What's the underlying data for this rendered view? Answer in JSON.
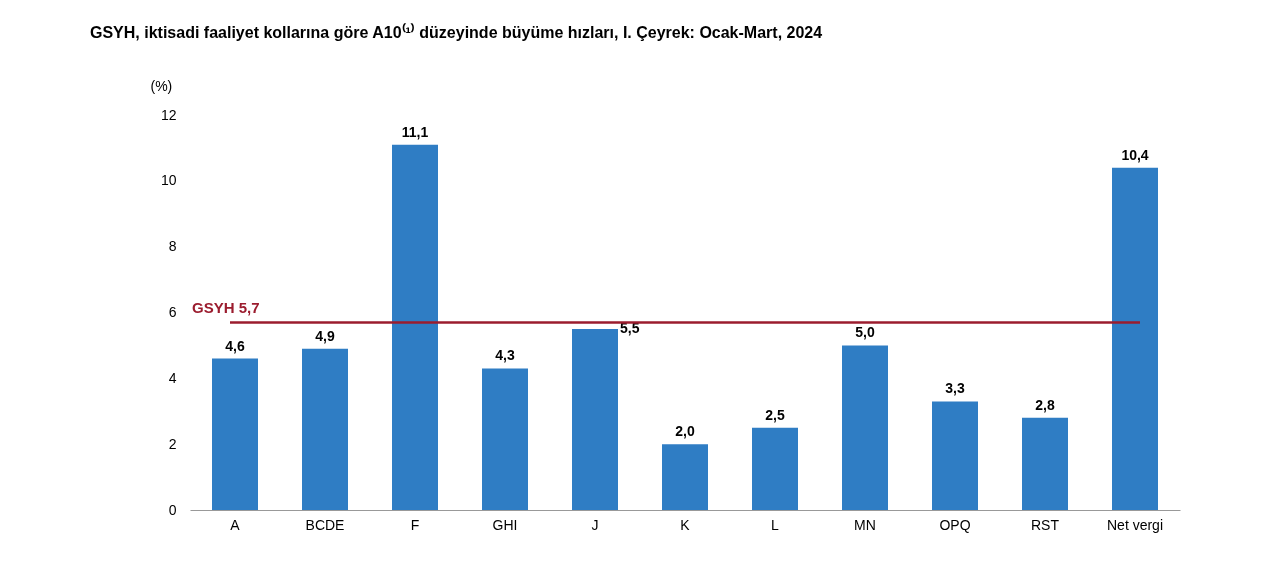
{
  "chart_data": {
    "type": "bar",
    "title": "GSYH, iktisadi faaliyet kollarına göre A10⁽¹⁾ düzeyinde büyüme hızları, I. Çeyrek: Ocak-Mart, 2024",
    "ylabel": "(%)",
    "categories": [
      "A",
      "BCDE",
      "F",
      "GHI",
      "J",
      "K",
      "L",
      "MN",
      "OPQ",
      "RST",
      "Net vergi"
    ],
    "values": [
      4.6,
      4.9,
      11.1,
      4.3,
      5.5,
      2.0,
      2.5,
      5.0,
      3.3,
      2.8,
      10.4
    ],
    "value_labels": [
      "4,6",
      "4,9",
      "11,1",
      "4,3",
      "5,5",
      "2,0",
      "2,5",
      "5,0",
      "3,3",
      "2,8",
      "10,4"
    ],
    "color": "#2f7dc4",
    "ylim": [
      0,
      12
    ],
    "yticks": [
      0,
      2,
      4,
      6,
      8,
      10,
      12
    ],
    "ref_lines": [
      {
        "axis": "y",
        "value": 5.7,
        "label": "GSYH 5,7",
        "color": "#9b1c2e"
      }
    ],
    "grid": false
  }
}
